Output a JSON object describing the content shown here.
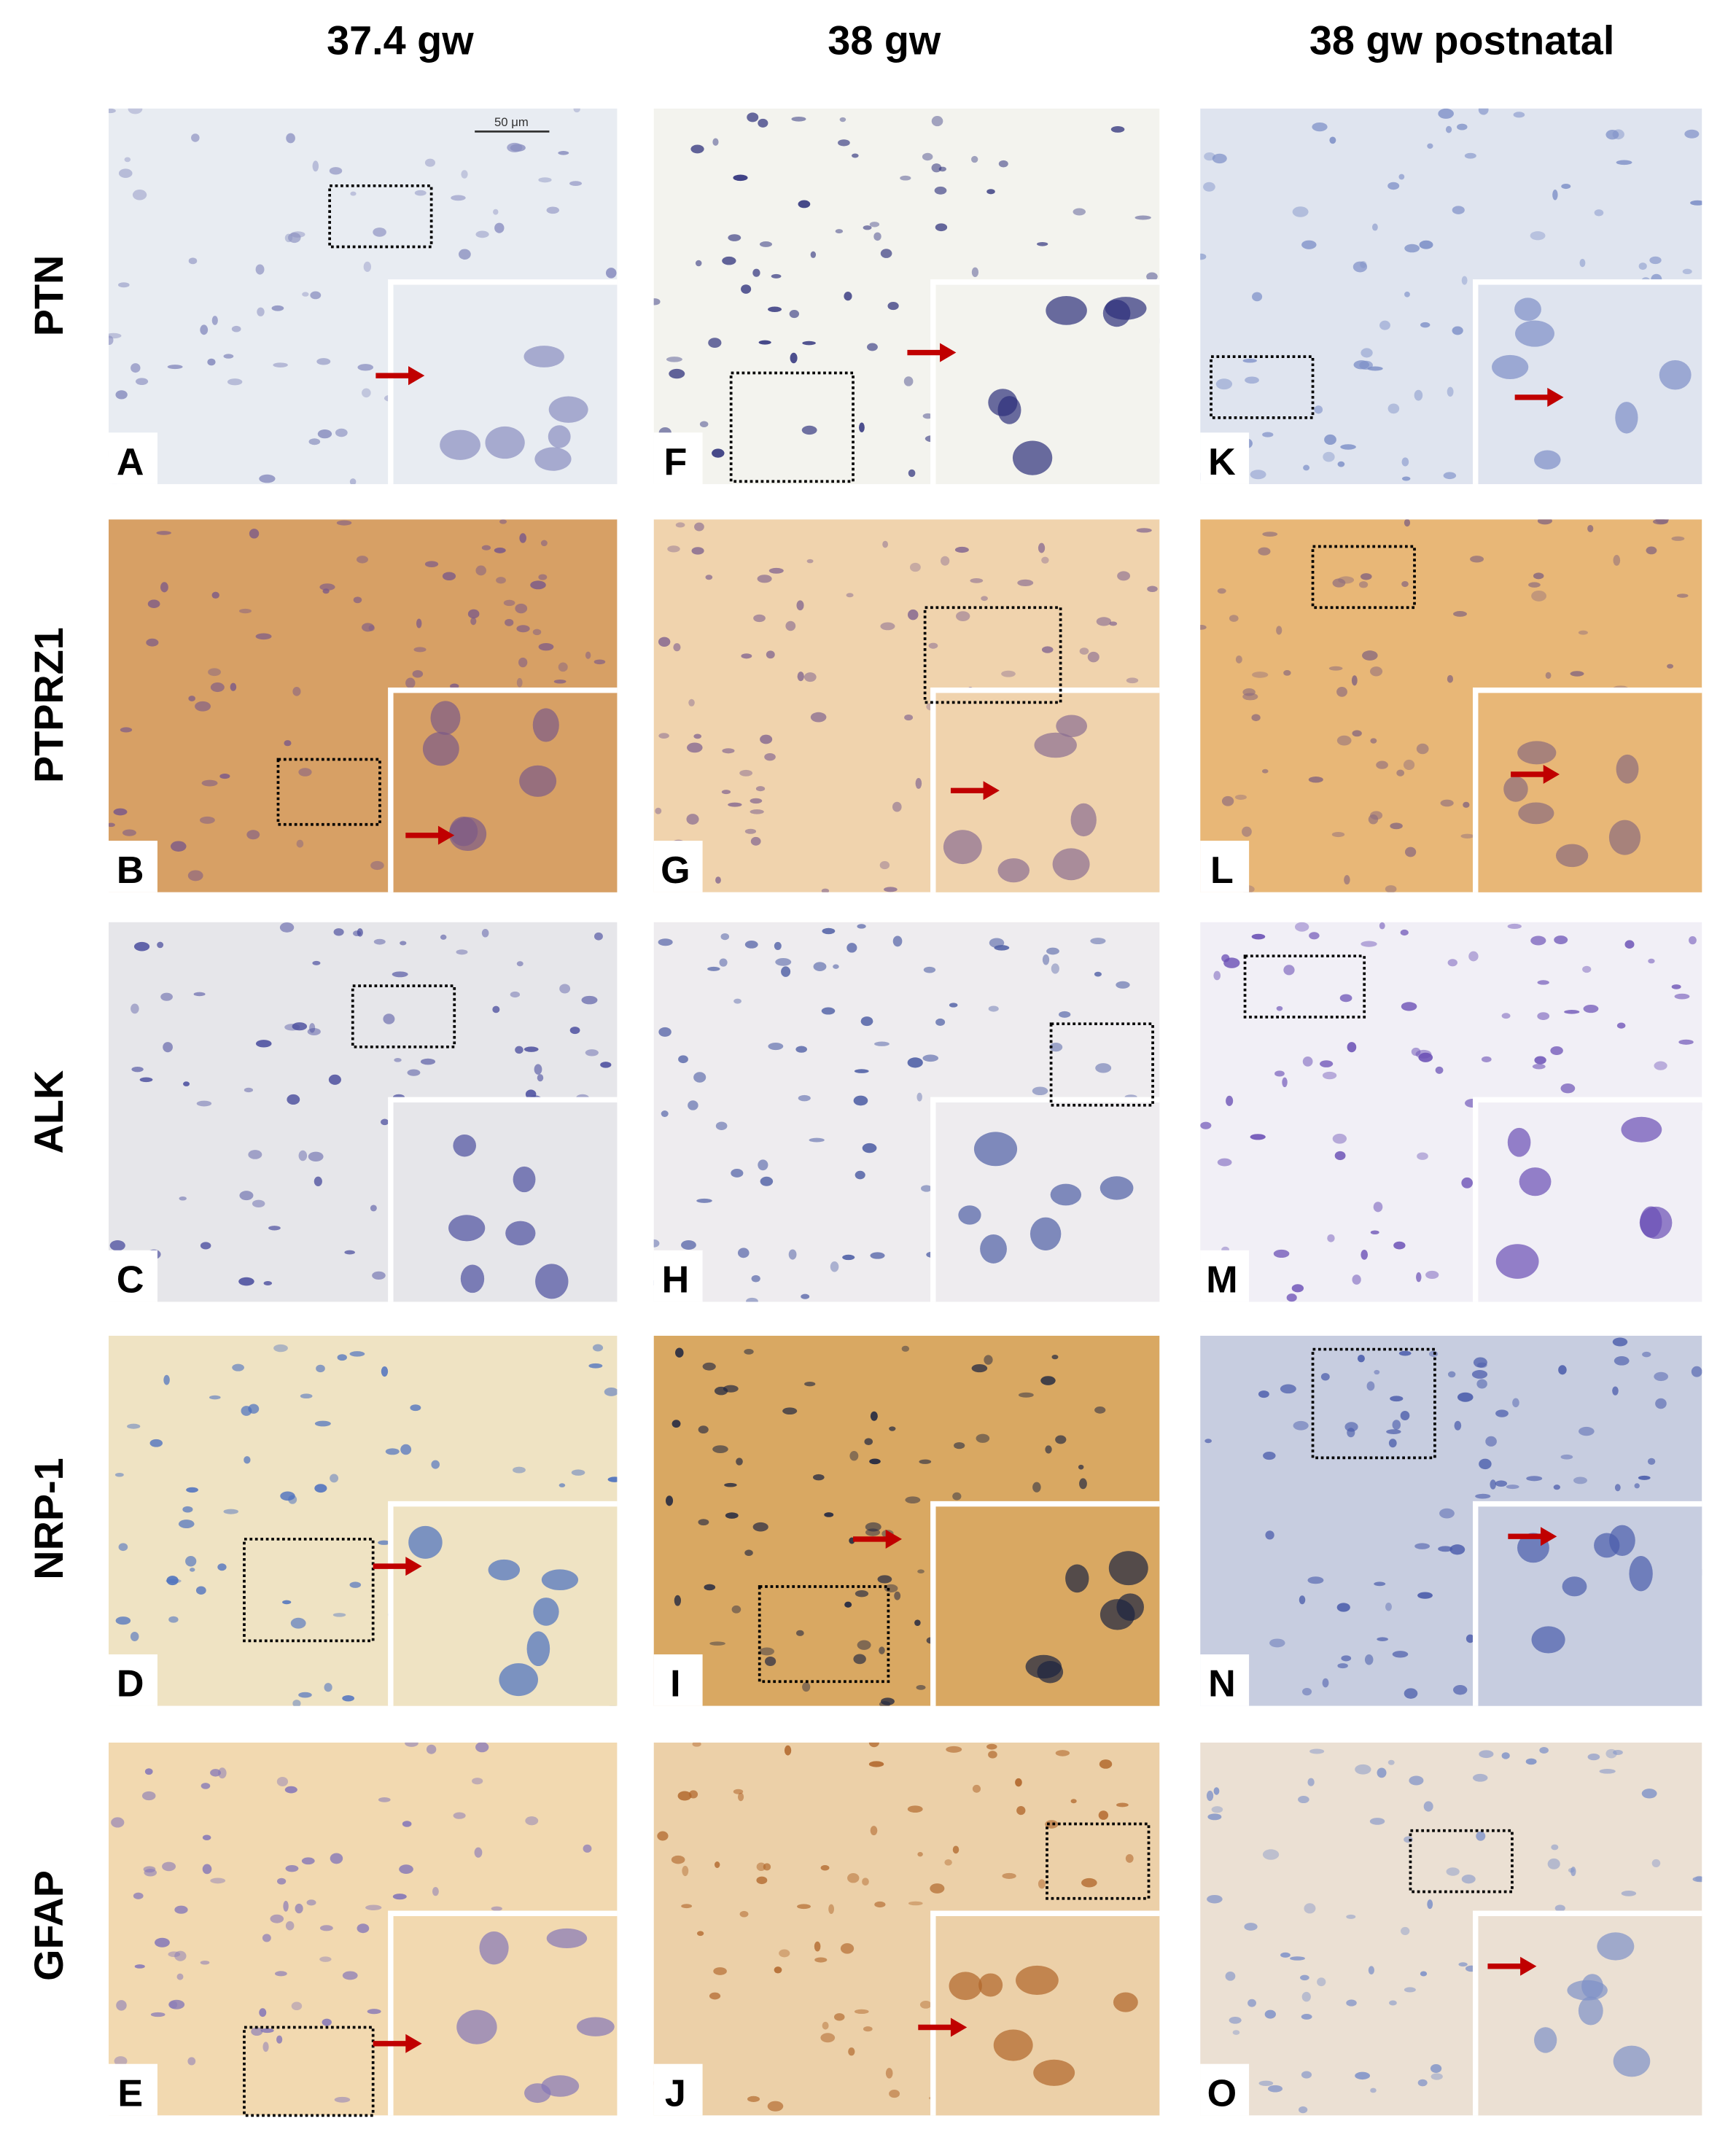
{
  "columns": [
    "37.4 gw",
    "38 gw",
    "38 gw postnatal"
  ],
  "rows": [
    "PTN",
    "PTPRZ1",
    "ALK",
    "NRP-1",
    "GFAP"
  ],
  "panels": [
    [
      "A",
      "F",
      "K"
    ],
    [
      "B",
      "G",
      "L"
    ],
    [
      "C",
      "H",
      "M"
    ],
    [
      "D",
      "I",
      "N"
    ],
    [
      "E",
      "J",
      "O"
    ]
  ],
  "scale_bar": "50 μm"
}
